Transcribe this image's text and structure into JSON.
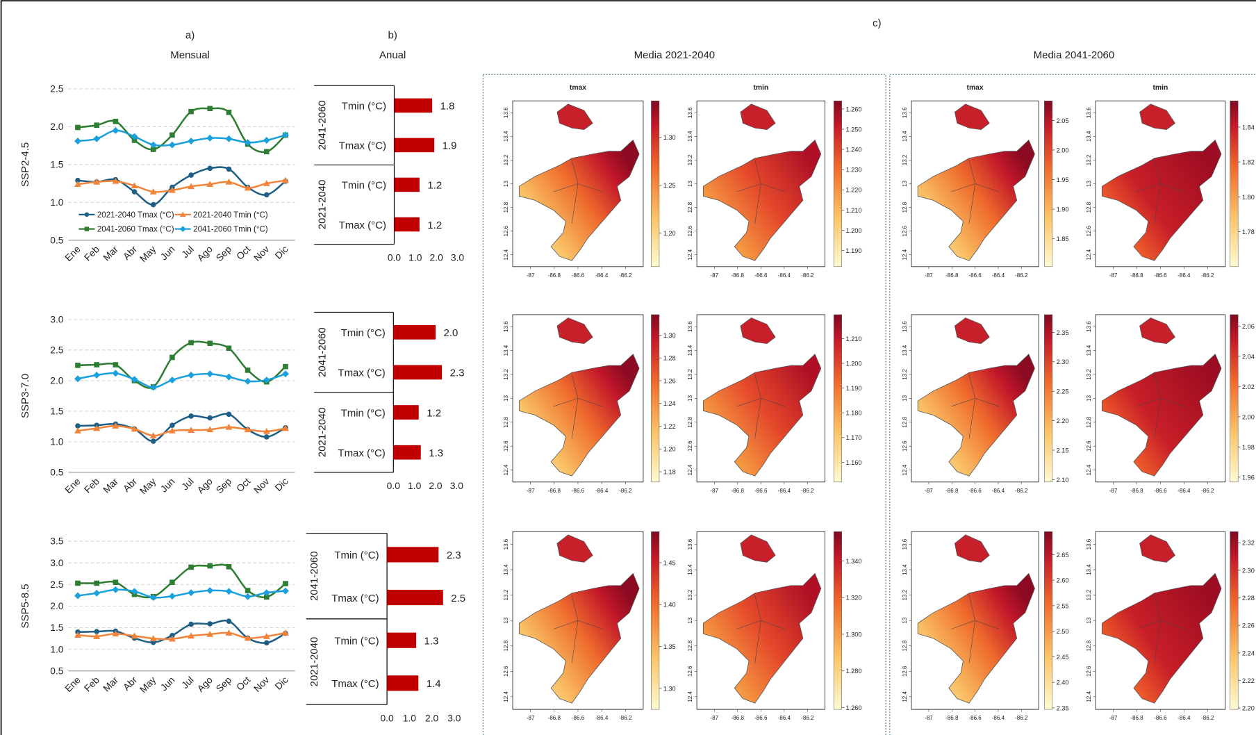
{
  "figure": {
    "panel_a": "a)",
    "panel_a_title": "Mensual",
    "panel_b": "b)",
    "panel_b_title": "Anual",
    "panel_c": "c)",
    "period_titles": [
      "Media 2021-2040",
      "Media 2041-2060"
    ]
  },
  "map_axes": {
    "xlim": [
      -87.15,
      -86.05
    ],
    "xticks": [
      -87,
      -86.8,
      -86.6,
      -86.4,
      -86.2
    ],
    "ylim": [
      12.3,
      13.7
    ],
    "yticks": [
      12.4,
      12.6,
      12.8,
      13,
      13.2,
      13.4,
      13.6
    ]
  },
  "chart_data": [
    {
      "type": "line",
      "ylabel": "SSP2-4.5",
      "categories": [
        "Ene",
        "Feb",
        "Mar",
        "Abr",
        "May",
        "Jun",
        "Jul",
        "Ago",
        "Sep",
        "Oct",
        "Nov",
        "Dic"
      ],
      "ylim": [
        0.5,
        2.5
      ],
      "yticks": [
        0.5,
        {
          "value": 1.0,
          "label": "1.0"
        },
        1.5,
        {
          "value": 2.0,
          "label": "2.0"
        },
        2.5
      ],
      "grid": true,
      "legend": "lower left",
      "series": [
        {
          "name": "2021-2040 Tmax (°C)",
          "color": "#1f5f86",
          "marker": "circle",
          "values": [
            1.29,
            1.27,
            1.3,
            1.14,
            0.97,
            1.2,
            1.36,
            1.45,
            1.44,
            1.2,
            1.1,
            1.28
          ]
        },
        {
          "name": "2021-2040 Tmin (°C)",
          "color": "#f0843a",
          "marker": "triangle",
          "values": [
            1.24,
            1.27,
            1.28,
            1.22,
            1.14,
            1.16,
            1.21,
            1.24,
            1.27,
            1.19,
            1.25,
            1.29
          ]
        },
        {
          "name": "2041-2060 Tmax (°C)",
          "color": "#2e7d32",
          "marker": "square",
          "values": [
            1.99,
            2.02,
            2.07,
            1.82,
            1.7,
            1.89,
            2.2,
            2.24,
            2.19,
            1.77,
            1.67,
            1.89
          ]
        },
        {
          "name": "2041-2060 Tmin (°C)",
          "color": "#1aa0dc",
          "marker": "diamond",
          "values": [
            1.81,
            1.84,
            1.95,
            1.87,
            1.76,
            1.76,
            1.81,
            1.85,
            1.84,
            1.79,
            1.82,
            1.89
          ]
        }
      ]
    },
    {
      "type": "line",
      "ylabel": "SSP3-7.0",
      "categories": [
        "Ene",
        "Feb",
        "Mar",
        "Abr",
        "May",
        "Jun",
        "Jul",
        "Ago",
        "Sep",
        "Oct",
        "Nov",
        "Dic"
      ],
      "ylim": [
        0.5,
        3.0
      ],
      "yticks": [
        0.5,
        {
          "value": 1.0,
          "label": "1.0"
        },
        1.5,
        {
          "value": 2.0,
          "label": "2.0"
        },
        2.5,
        {
          "value": 3.0,
          "label": "3.0"
        }
      ],
      "grid": true,
      "series": [
        {
          "color": "#1f5f86",
          "marker": "circle",
          "values": [
            1.26,
            1.27,
            1.29,
            1.21,
            1.01,
            1.27,
            1.42,
            1.39,
            1.45,
            1.2,
            1.08,
            1.23
          ]
        },
        {
          "color": "#f0843a",
          "marker": "triangle",
          "values": [
            1.18,
            1.22,
            1.26,
            1.21,
            1.1,
            1.18,
            1.19,
            1.2,
            1.24,
            1.2,
            1.17,
            1.22
          ]
        },
        {
          "color": "#2e7d32",
          "marker": "square",
          "values": [
            2.25,
            2.26,
            2.26,
            2.0,
            1.9,
            2.38,
            2.62,
            2.61,
            2.53,
            2.17,
            1.98,
            2.23
          ]
        },
        {
          "color": "#1aa0dc",
          "marker": "diamond",
          "values": [
            2.03,
            2.09,
            2.12,
            2.02,
            1.89,
            2.01,
            2.09,
            2.11,
            2.06,
            1.99,
            2.01,
            2.11
          ]
        }
      ]
    },
    {
      "type": "line",
      "ylabel": "SSP5-8.5",
      "categories": [
        "Ene",
        "Feb",
        "Mar",
        "Abr",
        "May",
        "Jun",
        "Jul",
        "Ago",
        "Sep",
        "Oct",
        "Nov",
        "Dic"
      ],
      "ylim": [
        0.5,
        3.5
      ],
      "yticks": [
        0.5,
        {
          "value": 1.0,
          "label": "1.0"
        },
        1.5,
        {
          "value": 2.0,
          "label": "2.0"
        },
        2.5,
        {
          "value": 3.0,
          "label": "3.0"
        },
        3.5
      ],
      "grid": true,
      "series": [
        {
          "color": "#1f5f86",
          "marker": "circle",
          "values": [
            1.4,
            1.41,
            1.42,
            1.26,
            1.16,
            1.32,
            1.58,
            1.59,
            1.65,
            1.26,
            1.15,
            1.37
          ]
        },
        {
          "color": "#f0843a",
          "marker": "triangle",
          "values": [
            1.33,
            1.3,
            1.36,
            1.31,
            1.25,
            1.24,
            1.31,
            1.35,
            1.38,
            1.26,
            1.3,
            1.38
          ]
        },
        {
          "color": "#2e7d32",
          "marker": "square",
          "values": [
            2.53,
            2.53,
            2.55,
            2.27,
            2.22,
            2.55,
            2.9,
            2.93,
            2.91,
            2.36,
            2.21,
            2.52
          ]
        },
        {
          "color": "#1aa0dc",
          "marker": "diamond",
          "values": [
            2.24,
            2.3,
            2.38,
            2.34,
            2.2,
            2.23,
            2.31,
            2.36,
            2.34,
            2.22,
            2.31,
            2.35
          ]
        }
      ]
    },
    {
      "type": "hbar",
      "groups": [
        "2041-2060",
        "2021-2040"
      ],
      "categories": [
        "Tmin (°C)",
        "Tmax (°C)",
        "Tmin (°C)",
        "Tmax (°C)"
      ],
      "values": [
        1.8,
        1.9,
        1.2,
        1.2
      ],
      "color": "#c00000",
      "xlim": [
        0,
        3.0
      ],
      "xticks": [
        {
          "value": 0,
          "label": "0.0"
        },
        {
          "value": 1,
          "label": "1.0"
        },
        {
          "value": 2,
          "label": "2.0"
        },
        {
          "value": 3,
          "label": "3.0"
        }
      ]
    },
    {
      "type": "hbar",
      "groups": [
        "2041-2060",
        "2021-2040"
      ],
      "categories": [
        "Tmin (°C)",
        "Tmax (°C)",
        "Tmin (°C)",
        "Tmax (°C)"
      ],
      "values": [
        2.0,
        2.3,
        1.2,
        1.3
      ],
      "value_labels": [
        "2.0",
        "2.3",
        "1.2",
        "1.3"
      ],
      "color": "#c00000",
      "xlim": [
        0,
        3.0
      ],
      "xticks": [
        {
          "value": 0,
          "label": "0.0"
        },
        {
          "value": 1,
          "label": "1.0"
        },
        {
          "value": 2,
          "label": "2.0"
        },
        {
          "value": 3,
          "label": "3.0"
        }
      ]
    },
    {
      "type": "hbar",
      "groups": [
        "2041-2060",
        "2021-2040"
      ],
      "categories": [
        "Tmin (°C)",
        "Tmax (°C)",
        "Tmin (°C)",
        "Tmax (°C)"
      ],
      "values": [
        2.3,
        2.5,
        1.3,
        1.4
      ],
      "color": "#c00000",
      "xlim": [
        0,
        3.0
      ],
      "xticks": [
        {
          "value": 0,
          "label": "0.0"
        },
        {
          "value": 1,
          "label": "1.0"
        },
        {
          "value": 2,
          "label": "2.0"
        },
        {
          "value": 3,
          "label": "3.0"
        }
      ]
    },
    {
      "type": "map",
      "title": "tmax",
      "ylim": [
        1.165,
        1.338
      ],
      "yticks": [
        {
          "value": 1.2,
          "label": "1.20"
        },
        1.25,
        {
          "value": 1.3,
          "label": "1.30"
        }
      ]
    },
    {
      "type": "map",
      "title": "tmin",
      "ylim": [
        1.182,
        1.264
      ],
      "yticks": [
        {
          "value": 1.26,
          "label": "1.260"
        },
        {
          "value": 1.25,
          "label": "1.250"
        },
        {
          "value": 1.24,
          "label": "1.240"
        },
        {
          "value": 1.23,
          "label": "1.230"
        },
        {
          "value": 1.22,
          "label": "1.220"
        },
        {
          "value": 1.21,
          "label": "1.210"
        },
        {
          "value": 1.2,
          "label": "1.200"
        },
        {
          "value": 1.19,
          "label": "1.190"
        }
      ]
    },
    {
      "type": "map",
      "title": "tmax",
      "ylim": [
        1.803,
        2.083
      ],
      "yticks": [
        2.05,
        {
          "value": 2.0,
          "label": "2.00"
        },
        1.95,
        {
          "value": 1.9,
          "label": "1.90"
        },
        1.85
      ]
    },
    {
      "type": "map",
      "title": "tmin",
      "ylim": [
        1.76,
        1.855
      ],
      "yticks": [
        1.84,
        1.82,
        {
          "value": 1.8,
          "label": "1.80"
        },
        1.78
      ]
    },
    {
      "type": "map",
      "ylim": [
        1.171,
        1.318
      ],
      "yticks": [
        {
          "value": 1.3,
          "label": "1.30"
        },
        1.28,
        1.26,
        1.24,
        1.22,
        {
          "value": 1.2,
          "label": "1.20"
        },
        1.18
      ]
    },
    {
      "type": "map",
      "ylim": [
        1.152,
        1.2197
      ],
      "yticks": [
        {
          "value": 1.21,
          "label": "1.210"
        },
        {
          "value": 1.2,
          "label": "1.200"
        },
        {
          "value": 1.19,
          "label": "1.190"
        },
        {
          "value": 1.18,
          "label": "1.180"
        },
        {
          "value": 1.17,
          "label": "1.170"
        },
        {
          "value": 1.16,
          "label": "1.160"
        }
      ]
    },
    {
      "type": "map",
      "ylim": [
        2.096,
        2.38
      ],
      "yticks": [
        2.35,
        {
          "value": 2.3,
          "label": "2.30"
        },
        2.25,
        {
          "value": 2.2,
          "label": "2.20"
        },
        2.15,
        {
          "value": 2.1,
          "label": "2.10"
        }
      ]
    },
    {
      "type": "map",
      "ylim": [
        1.9568,
        2.0676
      ],
      "yticks": [
        2.06,
        2.04,
        2.02,
        {
          "value": 2.0,
          "label": "2.00"
        },
        1.98,
        1.96
      ]
    },
    {
      "type": "map",
      "ylim": [
        1.275,
        1.487
      ],
      "yticks": [
        1.45,
        {
          "value": 1.4,
          "label": "1.40"
        },
        1.35,
        {
          "value": 1.3,
          "label": "1.30"
        }
      ]
    },
    {
      "type": "map",
      "ylim": [
        1.259,
        1.356
      ],
      "yticks": [
        {
          "value": 1.34,
          "label": "1.340"
        },
        {
          "value": 1.32,
          "label": "1.320"
        },
        {
          "value": 1.3,
          "label": "1.300"
        },
        {
          "value": 1.28,
          "label": "1.280"
        },
        {
          "value": 1.26,
          "label": "1.260"
        }
      ]
    },
    {
      "type": "map",
      "ylim": [
        2.347,
        2.695
      ],
      "yticks": [
        2.65,
        {
          "value": 2.6,
          "label": "2.60"
        },
        2.55,
        {
          "value": 2.5,
          "label": "2.50"
        },
        2.45,
        {
          "value": 2.4,
          "label": "2.40"
        },
        2.35
      ]
    },
    {
      "type": "map",
      "ylim": [
        2.199,
        2.328
      ],
      "yticks": [
        2.32,
        {
          "value": 2.3,
          "label": "2.30"
        },
        2.28,
        2.26,
        2.24,
        2.22,
        {
          "value": 2.2,
          "label": "2.20"
        }
      ]
    }
  ]
}
